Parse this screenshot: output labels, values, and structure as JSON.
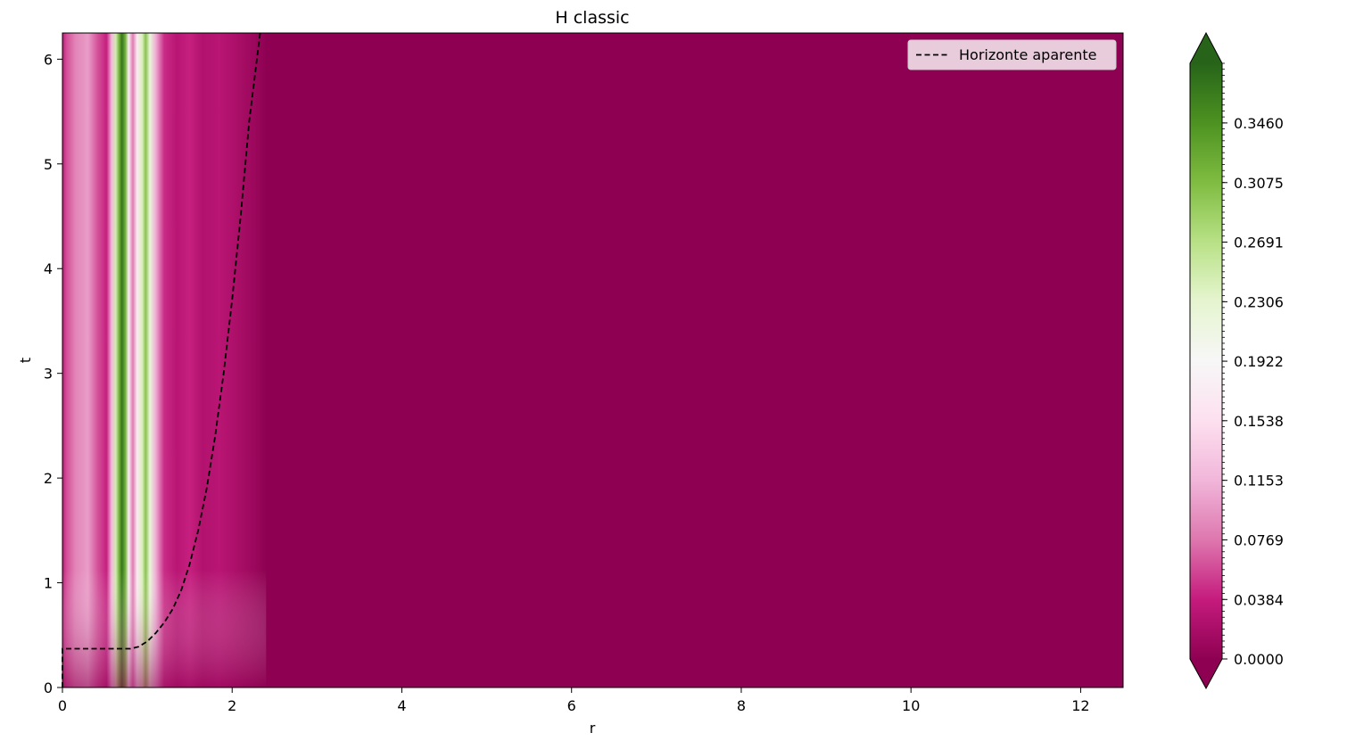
{
  "chart_data": {
    "type": "heatmap",
    "title": "H classic",
    "xlabel": "r",
    "ylabel": "t",
    "xlim": [
      0,
      12.5
    ],
    "ylim": [
      0,
      6.25
    ],
    "xticks": [
      0,
      2,
      4,
      6,
      8,
      10,
      12
    ],
    "yticks": [
      0,
      1,
      2,
      3,
      4,
      5,
      6
    ],
    "grid": false,
    "legend": {
      "placement": "top-right",
      "entries": [
        {
          "label": "Horizonte aparente",
          "style": "dashed",
          "color": "#000000"
        }
      ]
    },
    "colormap": "PiYG",
    "colormap_stops": [
      "#8e0152",
      "#c51b7d",
      "#de77ae",
      "#f1b6da",
      "#fde0ef",
      "#f7f7f7",
      "#e6f5d0",
      "#b8e186",
      "#7fbc41",
      "#4d9221",
      "#276419"
    ],
    "colorbar": {
      "vmin": 0.0,
      "vmax": 0.3845,
      "extend": "both",
      "ticks": [
        "0.0000",
        "0.0384",
        "0.0769",
        "0.1153",
        "0.1538",
        "0.1922",
        "0.2306",
        "0.2691",
        "0.3075",
        "0.3460"
      ]
    },
    "field_bands": [
      {
        "r": 0.0,
        "value": 0.035
      },
      {
        "r": 0.05,
        "value": 0.06
      },
      {
        "r": 0.15,
        "value": 0.085
      },
      {
        "r": 0.3,
        "value": 0.1
      },
      {
        "r": 0.42,
        "value": 0.06
      },
      {
        "r": 0.52,
        "value": 0.04
      },
      {
        "r": 0.58,
        "value": 0.12
      },
      {
        "r": 0.63,
        "value": 0.25
      },
      {
        "r": 0.67,
        "value": 0.32
      },
      {
        "r": 0.7,
        "value": 0.37
      },
      {
        "r": 0.74,
        "value": 0.32
      },
      {
        "r": 0.78,
        "value": 0.18
      },
      {
        "r": 0.83,
        "value": 0.08
      },
      {
        "r": 0.88,
        "value": 0.17
      },
      {
        "r": 0.94,
        "value": 0.24
      },
      {
        "r": 0.98,
        "value": 0.3
      },
      {
        "r": 1.03,
        "value": 0.22
      },
      {
        "r": 1.1,
        "value": 0.11
      },
      {
        "r": 1.2,
        "value": 0.045
      },
      {
        "r": 1.35,
        "value": 0.03
      },
      {
        "r": 1.5,
        "value": 0.04
      },
      {
        "r": 1.65,
        "value": 0.025
      },
      {
        "r": 1.85,
        "value": 0.03
      },
      {
        "r": 2.05,
        "value": 0.02
      },
      {
        "r": 2.25,
        "value": 0.01
      },
      {
        "r": 2.4,
        "value": 0.0
      }
    ],
    "horizon_curve": {
      "r": [
        0.0,
        0.0,
        0.8,
        0.9,
        1.0,
        1.1,
        1.2,
        1.3,
        1.4,
        1.5,
        1.6,
        1.7,
        1.8,
        1.9,
        2.0,
        2.1,
        2.2,
        2.33
      ],
      "t": [
        0.0,
        0.37,
        0.37,
        0.39,
        0.44,
        0.52,
        0.62,
        0.75,
        0.93,
        1.18,
        1.5,
        1.9,
        2.4,
        3.0,
        3.7,
        4.5,
        5.4,
        6.25
      ]
    }
  }
}
